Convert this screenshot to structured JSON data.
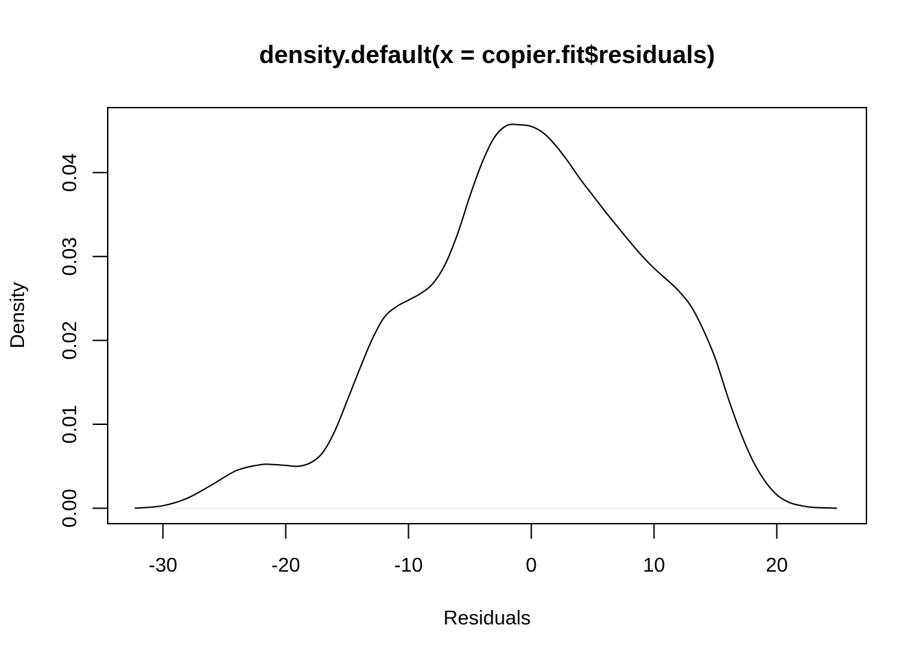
{
  "chart_data": {
    "type": "line",
    "title": "density.default(x = copier.fit$residuals)",
    "xlabel": "Residuals",
    "ylabel": "Density",
    "xlim": [
      -34.5,
      27.3
    ],
    "ylim": [
      -0.00184,
      0.04774
    ],
    "x_ticks": [
      -30,
      -20,
      -10,
      0,
      10,
      20
    ],
    "x_tick_labels": [
      "-30",
      "-20",
      "-10",
      "0",
      "10",
      "20"
    ],
    "y_ticks": [
      0,
      0.01,
      0.02,
      0.03,
      0.04
    ],
    "y_tick_labels": [
      "0.00",
      "0.01",
      "0.02",
      "0.03",
      "0.04"
    ],
    "zero_line": true,
    "grid": false,
    "series": [
      {
        "color": "#000000",
        "x": [
          -32.3,
          -30.0,
          -28.0,
          -26.0,
          -24.0,
          -22.0,
          -21.0,
          -20.0,
          -19.0,
          -18.0,
          -17.0,
          -16.0,
          -15.0,
          -14.0,
          -13.0,
          -12.0,
          -11.0,
          -10.0,
          -9.0,
          -8.0,
          -7.0,
          -6.0,
          -5.0,
          -4.0,
          -3.0,
          -2.0,
          -1.0,
          0.0,
          1.0,
          2.0,
          3.0,
          4.0,
          5.0,
          6.0,
          7.0,
          8.0,
          9.0,
          10.0,
          11.0,
          12.0,
          13.0,
          14.0,
          15.0,
          16.0,
          17.0,
          18.0,
          19.0,
          20.0,
          21.0,
          22.0,
          23.0,
          24.9
        ],
        "y": [
          0.0,
          0.0003,
          0.0012,
          0.0028,
          0.0045,
          0.0052,
          0.0052,
          0.0051,
          0.005,
          0.0054,
          0.0066,
          0.0092,
          0.0128,
          0.0165,
          0.02,
          0.0227,
          0.024,
          0.0248,
          0.0256,
          0.0268,
          0.0291,
          0.0327,
          0.0372,
          0.0412,
          0.0442,
          0.0456,
          0.0457,
          0.0455,
          0.0447,
          0.0432,
          0.0413,
          0.0392,
          0.0373,
          0.0354,
          0.0336,
          0.0318,
          0.0301,
          0.0286,
          0.0273,
          0.0259,
          0.0241,
          0.0213,
          0.0178,
          0.0133,
          0.0092,
          0.0058,
          0.0033,
          0.0016,
          0.0007,
          0.0003,
          0.0001,
          0.0
        ]
      }
    ]
  }
}
